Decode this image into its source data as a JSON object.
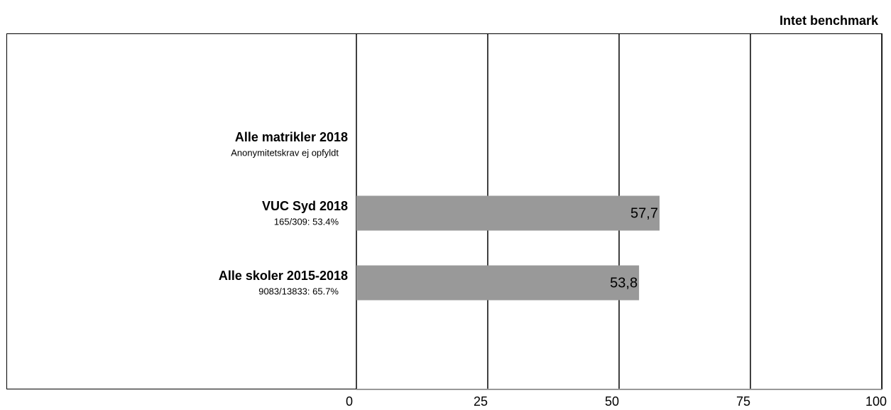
{
  "chart_data": {
    "type": "hbar",
    "title": "Intet benchmark",
    "categories": [
      "Alle matrikler 2018",
      "VUC Syd 2018",
      "Alle skoler 2015-2018"
    ],
    "category_notes": [
      "Anonymitetskrav ej opfyldt",
      "165/309: 53.4%",
      "9083/13833: 65.7%"
    ],
    "values": [
      null,
      57.7,
      53.8
    ],
    "value_labels": [
      null,
      "57,7",
      "53,8"
    ],
    "color": "#999999",
    "xlim": [
      0,
      100
    ],
    "xticks": [
      0,
      25,
      50,
      75,
      100
    ],
    "grid": true
  }
}
